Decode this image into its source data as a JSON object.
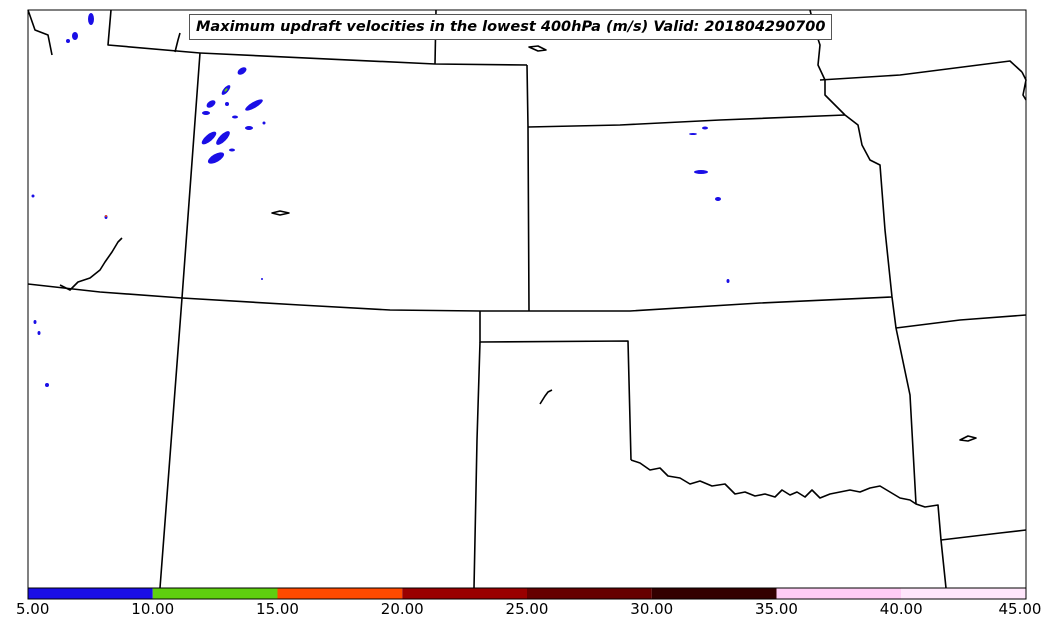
{
  "title": "Maximum updraft velocities in the lowest 400hPa (m/s) Valid: 201804290700",
  "colorbar": {
    "ticks": [
      "5.00",
      "10.00",
      "15.00",
      "20.00",
      "25.00",
      "30.00",
      "35.00",
      "40.00",
      "45.00"
    ],
    "bins": [
      {
        "from": 5,
        "to": 10,
        "color": "#1a0ee6"
      },
      {
        "from": 10,
        "to": 15,
        "color": "#5fcf10"
      },
      {
        "from": 15,
        "to": 20,
        "color": "#ff4a00"
      },
      {
        "from": 20,
        "to": 25,
        "color": "#9a0000"
      },
      {
        "from": 25,
        "to": 30,
        "color": "#660000"
      },
      {
        "from": 30,
        "to": 35,
        "color": "#330000"
      },
      {
        "from": 35,
        "to": 40,
        "color": "#ffccf5"
      },
      {
        "from": 40,
        "to": 45,
        "color": "#ffe6fb"
      }
    ]
  },
  "colors": {
    "updraft_cell": "#1a0ee6",
    "boundary": "#000000"
  }
}
